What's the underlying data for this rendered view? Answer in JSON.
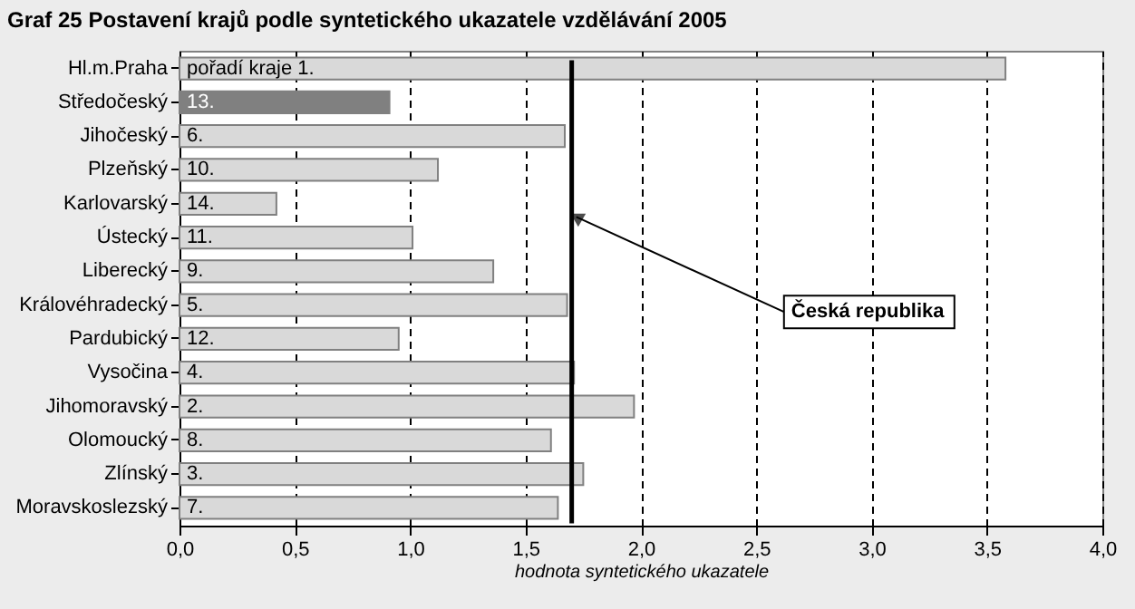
{
  "chart_data": {
    "type": "bar",
    "orientation": "horizontal",
    "title": "Graf 25 Postavení krajů podle syntetického ukazatele vzdělávání 2005",
    "xlabel": "hodnota syntetického ukazatele",
    "categories": [
      "Hl.m.Praha",
      "Středočeský",
      "Jihočeský",
      "Plzeňský",
      "Karlovarský",
      "Ústecký",
      "Liberecký",
      "Královéhradecký",
      "Pardubický",
      "Vysočina",
      "Jihomoravský",
      "Olomoucký",
      "Zlínský",
      "Moravskoslezský"
    ],
    "values": [
      3.58,
      0.91,
      1.67,
      1.12,
      0.42,
      1.01,
      1.36,
      1.68,
      0.95,
      1.71,
      1.97,
      1.61,
      1.75,
      1.64
    ],
    "colors": [
      "#d9d9d9",
      "#808080",
      "#d9d9d9",
      "#d9d9d9",
      "#d9d9d9",
      "#d9d9d9",
      "#d9d9d9",
      "#d9d9d9",
      "#d9d9d9",
      "#d9d9d9",
      "#d9d9d9",
      "#d9d9d9",
      "#d9d9d9",
      "#d9d9d9"
    ],
    "annotations": [
      {
        "text": "pořadí kraje  1.",
        "y": "Hl.m.Praha"
      },
      {
        "text": "13.",
        "y": "Středočeský"
      },
      {
        "text": "6.",
        "y": "Jihočeský"
      },
      {
        "text": "10.",
        "y": "Plzeňský"
      },
      {
        "text": "14.",
        "y": "Karlovarský"
      },
      {
        "text": "11.",
        "y": "Ústecký"
      },
      {
        "text": "9.",
        "y": "Liberecký"
      },
      {
        "text": "5.",
        "y": "Královéhradecký"
      },
      {
        "text": "12.",
        "y": "Pardubický"
      },
      {
        "text": "4.",
        "y": "Vysočina"
      },
      {
        "text": "2.",
        "y": "Jihomoravský"
      },
      {
        "text": "8.",
        "y": "Olomoucký"
      },
      {
        "text": "3.",
        "y": "Zlínský"
      },
      {
        "text": "7.",
        "y": "Moravskoslezský"
      }
    ],
    "xlim": [
      0,
      4
    ],
    "xticks": [
      {
        "value": 0,
        "label": "0,0"
      },
      {
        "value": 0.5,
        "label": "0,5"
      },
      {
        "value": 1,
        "label": "1,0"
      },
      {
        "value": 1.5,
        "label": "1,5"
      },
      {
        "value": 2,
        "label": "2,0"
      },
      {
        "value": 2.5,
        "label": "2,5"
      },
      {
        "value": 3,
        "label": "3,0"
      },
      {
        "value": 3.5,
        "label": "3,5"
      },
      {
        "value": 4,
        "label": "4,0"
      }
    ],
    "grid": "x",
    "line_style": "dashed",
    "ref_lines": [
      {
        "axis": "x",
        "value": 1.7,
        "label": "Česká republika",
        "color": "#000000"
      }
    ]
  }
}
